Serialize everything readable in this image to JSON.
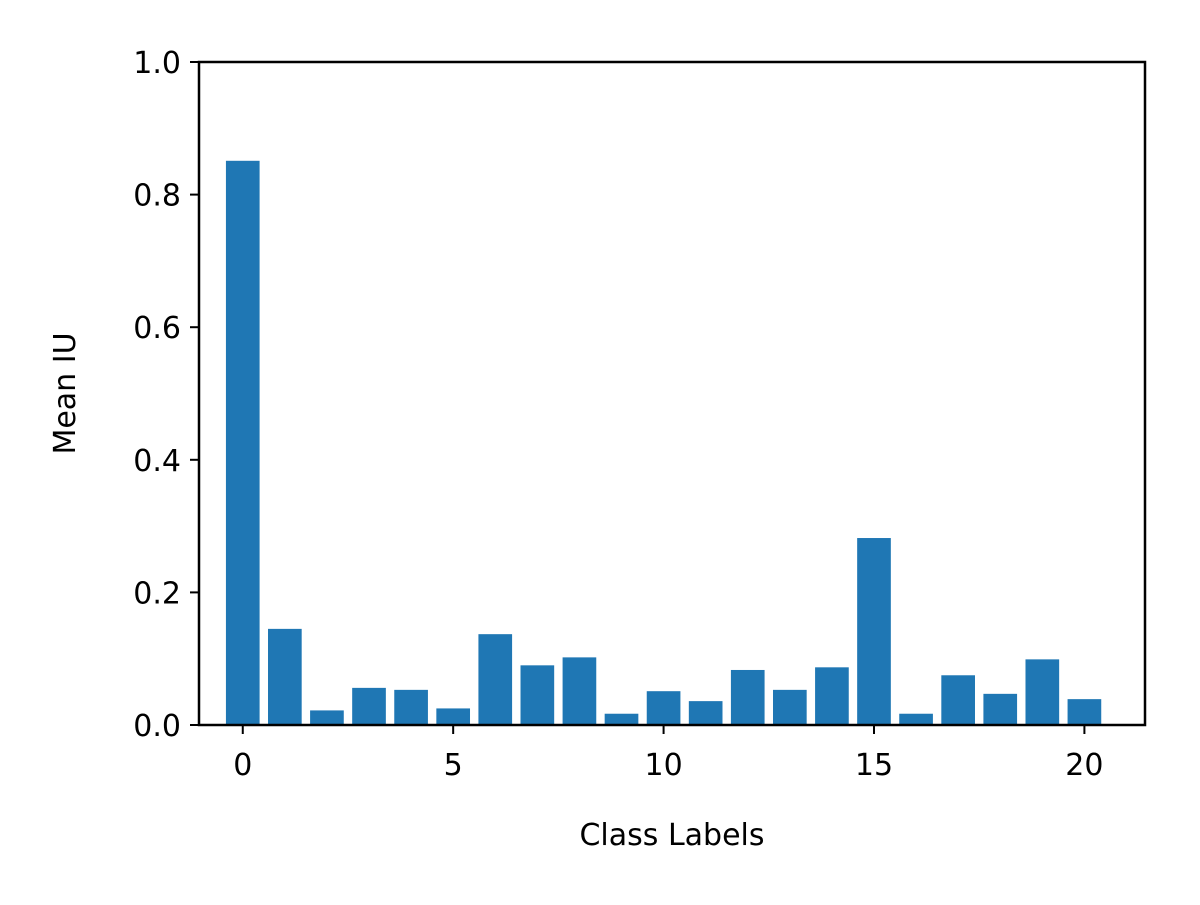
{
  "chart_data": {
    "type": "bar",
    "title": "",
    "xlabel": "Class Labels",
    "ylabel": "Mean IU",
    "categories": [
      0,
      1,
      2,
      3,
      4,
      5,
      6,
      7,
      8,
      9,
      10,
      11,
      12,
      13,
      14,
      15,
      16,
      17,
      18,
      19,
      20
    ],
    "values": [
      0.851,
      0.145,
      0.022,
      0.056,
      0.053,
      0.025,
      0.137,
      0.09,
      0.102,
      0.017,
      0.051,
      0.036,
      0.083,
      0.053,
      0.087,
      0.282,
      0.017,
      0.075,
      0.047,
      0.099,
      0.039
    ],
    "xlim": [
      -1.04,
      21.44
    ],
    "ylim": [
      0,
      1.0
    ],
    "xticks": [
      0,
      5,
      10,
      15,
      20
    ],
    "yticks": [
      0.0,
      0.2,
      0.4,
      0.6,
      0.8,
      1.0
    ],
    "ytick_labels": [
      "0.0",
      "0.2",
      "0.4",
      "0.6",
      "0.8",
      "1.0"
    ],
    "grid": false,
    "legend": "none",
    "bar_color": "#1f77b4"
  }
}
